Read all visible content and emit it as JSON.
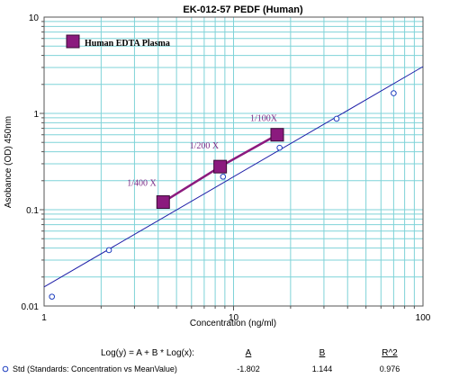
{
  "chart_data": {
    "type": "scatter",
    "title": "EK-012-57  PEDF (Human)",
    "xlabel": "Concentration (ng/ml)",
    "ylabel": "Asobance (OD) 450nm",
    "x_scale": "log",
    "y_scale": "log",
    "xlim": [
      1,
      100
    ],
    "ylim": [
      0.01,
      10
    ],
    "x_tick_labels": [
      "1",
      "10",
      "100"
    ],
    "y_tick_labels": [
      "0.01",
      "0.1",
      "1",
      "10"
    ],
    "grid": true,
    "colors": {
      "grid": "#7fd3d8",
      "fit_line": "#1f1fa8",
      "standards": "#1f3fbf",
      "sample": "#8b1a7e",
      "sample_label": "#7a2a86"
    },
    "series": [
      {
        "name": "Std (Standards: Concentration vs MeanValue)",
        "marker": "open-circle",
        "x": [
          1.1,
          2.2,
          4.4,
          8.8,
          17.5,
          35,
          70
        ],
        "y": [
          0.0125,
          0.038,
          0.12,
          0.22,
          0.44,
          0.88,
          1.62
        ]
      },
      {
        "name": "Human EDTA Plasma",
        "marker": "filled-square",
        "x": [
          4.25,
          8.5,
          17.0
        ],
        "y": [
          0.12,
          0.28,
          0.6
        ],
        "point_labels": [
          "1/400 X",
          "1/200 X",
          "1/100X"
        ]
      }
    ],
    "fit_line": {
      "A": -1.802,
      "B": 1.144
    },
    "legend": "Human EDTA Plasma",
    "equation": {
      "formula": "Log(y) = A + B * Log(x):",
      "headers": [
        "A",
        "B",
        "R^2"
      ],
      "values": [
        "-1.802",
        "1.144",
        "0.976"
      ]
    }
  }
}
